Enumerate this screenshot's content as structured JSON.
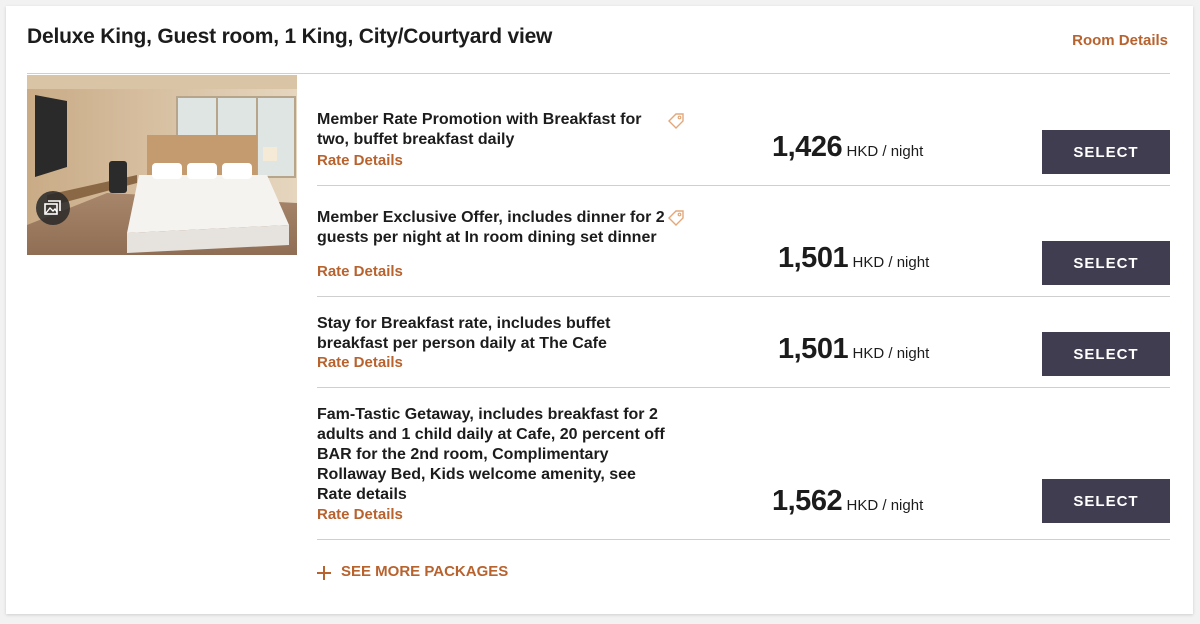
{
  "room": {
    "title": "Deluxe King, Guest room, 1 King, City/Courtyard view",
    "details_link": "Room Details",
    "photo_icon": "gallery-icon"
  },
  "rates": [
    {
      "name": "Member Rate Promotion with Breakfast for two, buffet breakfast daily",
      "details_link": "Rate Details",
      "price": "1,426",
      "unit": "HKD / night",
      "select_label": "SELECT",
      "has_tag": true
    },
    {
      "name": "Member Exclusive Offer, includes dinner for 2 guests per night at In room dining set dinner",
      "details_link": "Rate Details",
      "price": "1,501",
      "unit": "HKD / night",
      "select_label": "SELECT",
      "has_tag": true
    },
    {
      "name": "Stay for Breakfast rate, includes buffet breakfast per person daily at The Cafe",
      "details_link": "Rate Details",
      "price": "1,501",
      "unit": "HKD / night",
      "select_label": "SELECT",
      "has_tag": false
    },
    {
      "name": "Fam-Tastic Getaway, includes breakfast for 2 adults and 1 child daily at Cafe, 20 percent off BAR for the 2nd room, Complimentary Rollaway Bed, Kids welcome amenity, see Rate details",
      "details_link": "Rate Details",
      "price": "1,562",
      "unit": "HKD / night",
      "select_label": "SELECT",
      "has_tag": false
    }
  ],
  "see_more": {
    "label": "SEE MORE PACKAGES"
  },
  "colors": {
    "accent": "#b8622e",
    "button": "#3f3d4f",
    "divider": "#cfcfcf"
  }
}
